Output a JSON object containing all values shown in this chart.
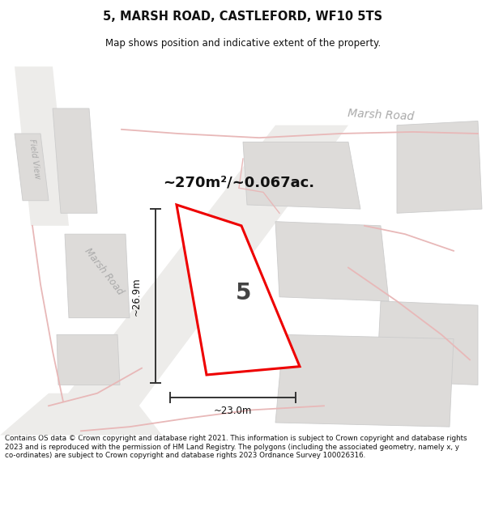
{
  "title": "5, MARSH ROAD, CASTLEFORD, WF10 5TS",
  "subtitle": "Map shows position and indicative extent of the property.",
  "area_text": "~270m²/~0.067ac.",
  "dim_width": "~23.0m",
  "dim_height": "~26.9m",
  "number_label": "5",
  "footer_text": "Contains OS data © Crown copyright and database right 2021. This information is subject to Crown copyright and database rights 2023 and is reproduced with the permission of HM Land Registry. The polygons (including the associated geometry, namely x, y co-ordinates) are subject to Crown copyright and database rights 2023 Ordnance Survey 100026316.",
  "bg_color": "#f2f0ee",
  "road_fill": "#e8e6e4",
  "block_color": "#dddbd9",
  "road_line_color": "#e8b8b8",
  "highlight_color": "#ee0000",
  "text_gray": "#aaaaaa",
  "title_color": "#111111",
  "footer_color": "#111111",
  "map_bg": "#eeece9"
}
